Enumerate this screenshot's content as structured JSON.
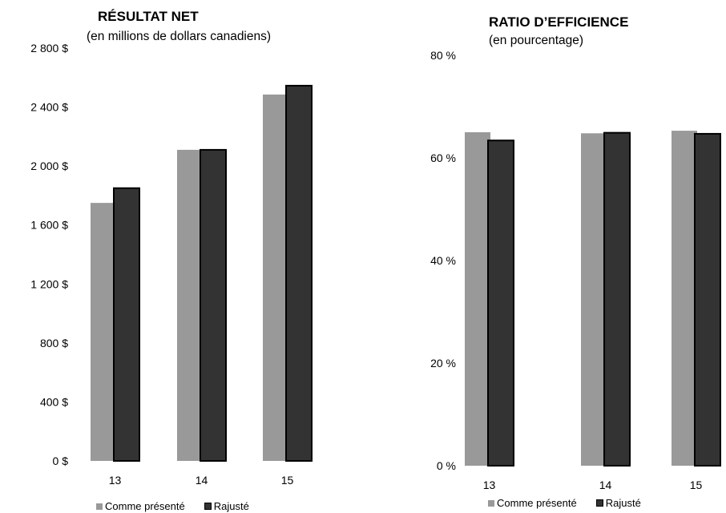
{
  "colors": {
    "presented": "#999999",
    "adjusted": "#333333",
    "adjusted_border": "#000000"
  },
  "chart_data": [
    {
      "type": "bar",
      "title": "RÉSULTAT NET",
      "subtitle": "(en millions de dollars canadiens)",
      "categories": [
        "13",
        "14",
        "15"
      ],
      "series": [
        {
          "name": "Comme présenté",
          "values": [
            1750,
            2110,
            2485
          ]
        },
        {
          "name": "Rajusté",
          "values": [
            1850,
            2110,
            2545
          ]
        }
      ],
      "ylim": [
        0,
        2800
      ],
      "yticks": [
        0,
        400,
        800,
        1200,
        1600,
        2000,
        2400,
        2800
      ],
      "ytick_labels": [
        "0 $",
        "400 $",
        "800 $",
        "1 200 $",
        "1 600 $",
        "2 000 $",
        "2 400 $",
        "2 800 $"
      ],
      "grid": false,
      "legend": "bottom"
    },
    {
      "type": "bar",
      "title": "RATIO D’EFFICIENCE",
      "subtitle": "(en pourcentage)",
      "categories": [
        "13",
        "14",
        "15"
      ],
      "series": [
        {
          "name": "Comme présenté",
          "values": [
            65.0,
            64.8,
            65.3
          ]
        },
        {
          "name": "Rajusté",
          "values": [
            63.4,
            64.9,
            64.7
          ]
        }
      ],
      "ylim": [
        0,
        80
      ],
      "yticks": [
        0,
        20,
        40,
        60,
        80
      ],
      "ytick_labels": [
        "0 %",
        "20 %",
        "40 %",
        "60 %",
        "80 %"
      ],
      "grid": false,
      "legend": "bottom"
    }
  ]
}
